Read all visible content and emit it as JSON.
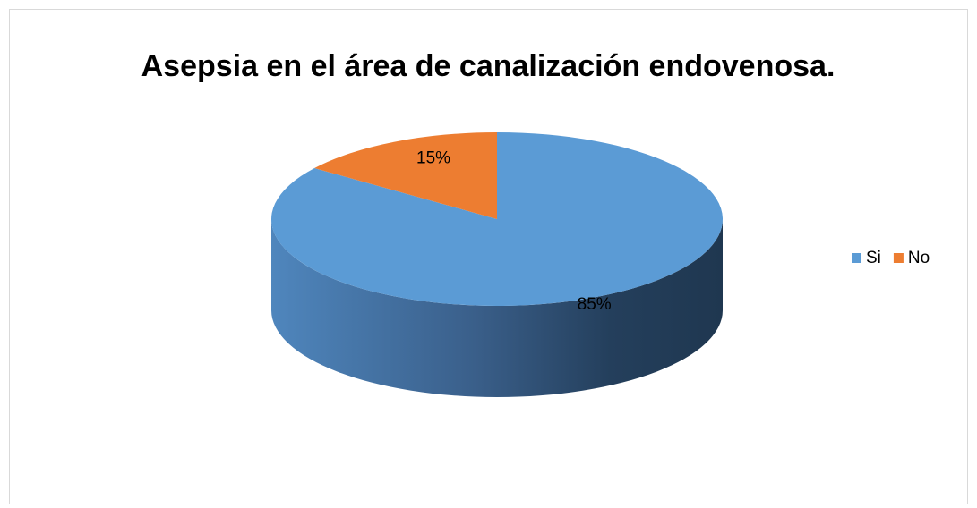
{
  "chart_data": {
    "type": "pie",
    "title": "Asepsia en el área de canalización endovenosa.",
    "categories": [
      "Si",
      "No"
    ],
    "values": [
      85,
      15
    ],
    "value_labels": [
      "85%",
      "15%"
    ],
    "colors": [
      "#5b9bd5",
      "#ed7d31"
    ],
    "legend": "right"
  }
}
